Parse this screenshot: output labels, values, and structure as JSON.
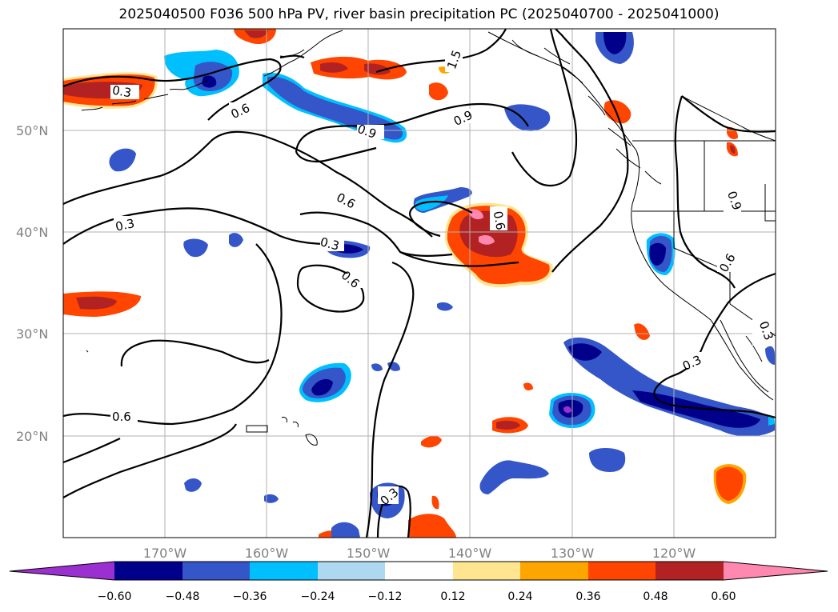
{
  "title": "2025040500 F036 500 hPa PV, river basin precipitation PC (2025040700 - 2025041000)",
  "axes": {
    "lat_ticks": [
      "50°N",
      "40°N",
      "30°N",
      "20°N"
    ],
    "lon_ticks": [
      "170°W",
      "160°W",
      "150°W",
      "140°W",
      "130°W",
      "120°W"
    ],
    "lon_range": [
      -180,
      -110
    ],
    "lat_range": [
      10,
      60
    ],
    "grid": true
  },
  "colorbar": {
    "ticks": [
      "−0.60",
      "−0.48",
      "−0.36",
      "−0.24",
      "−0.12",
      "0.12",
      "0.24",
      "0.36",
      "0.48",
      "0.60"
    ],
    "colors": [
      "#9b30d0",
      "#00008b",
      "#3456c8",
      "#00bfff",
      "#add8f0",
      "#ffffff",
      "#ffe58f",
      "#ffa500",
      "#ff4500",
      "#b22222",
      "#ff88b0"
    ],
    "extend": "both"
  },
  "contour_labels": [
    "0.3",
    "0.6",
    "0.9",
    "0.6",
    "1.5",
    "0.9",
    "0.6",
    "0.3",
    "0.3",
    "0.6",
    "0.9",
    "0.6",
    "0.3",
    "0.3",
    "0.6",
    "0.3",
    "0.3"
  ],
  "colors": {
    "negative_strong": "#00008b",
    "negative": "#3456c8",
    "negative_weak": "#00bfff",
    "positive": "#ff4500",
    "positive_strong": "#b22222",
    "extreme": "#ff88b0"
  }
}
